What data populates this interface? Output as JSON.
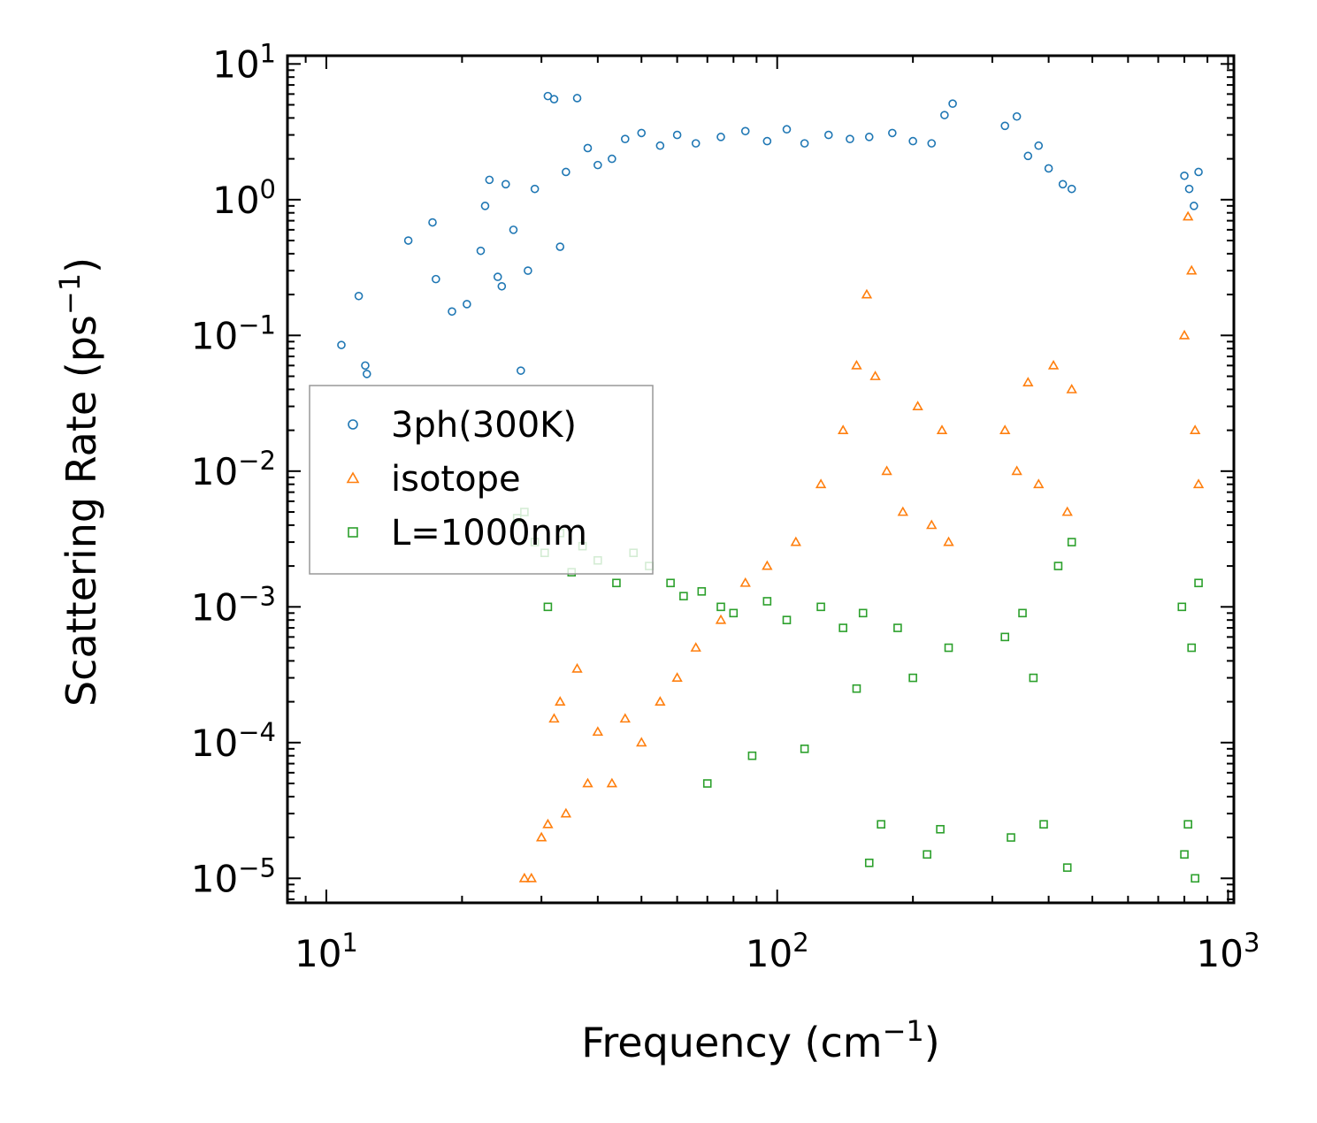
{
  "chart_data": {
    "type": "scatter",
    "xscale": "log",
    "yscale": "log",
    "xlim": [
      8.2,
      1030
    ],
    "ylim": [
      6.6e-06,
      11.5
    ],
    "xlabel": {
      "main": "Frequency (cm",
      "sup": "−1",
      "tail": ")"
    },
    "ylabel": {
      "main": "Scattering Rate (ps",
      "sup": "−1",
      "tail": ")"
    },
    "x_ticks": [
      {
        "value": 10,
        "base": "10",
        "exp": "1"
      },
      {
        "value": 100,
        "base": "10",
        "exp": "2"
      },
      {
        "value": 1000,
        "base": "10",
        "exp": "3"
      }
    ],
    "y_ticks": [
      {
        "value": 10,
        "base": "10",
        "exp": "1"
      },
      {
        "value": 1,
        "base": "10",
        "exp": "0"
      },
      {
        "value": 0.1,
        "base": "10",
        "exp": "−1"
      },
      {
        "value": 0.01,
        "base": "10",
        "exp": "−2"
      },
      {
        "value": 0.001,
        "base": "10",
        "exp": "−3"
      },
      {
        "value": 0.0001,
        "base": "10",
        "exp": "−4"
      },
      {
        "value": 1e-05,
        "base": "10",
        "exp": "−5"
      }
    ],
    "legend": {
      "location": "center-left"
    },
    "series": [
      {
        "name": "3ph(300K)",
        "marker": "circle",
        "color": "#1f77b4",
        "x": [
          10.8,
          11.8,
          12.2,
          12.3,
          15.2,
          17.2,
          17.5,
          19,
          20.5,
          22,
          22.5,
          23,
          24,
          24.5,
          25,
          26,
          27,
          28,
          29,
          31,
          32,
          33,
          34,
          36,
          38,
          40,
          43,
          46,
          50,
          55,
          60,
          66,
          75,
          85,
          95,
          105,
          115,
          130,
          145,
          160,
          180,
          200,
          220,
          235,
          245,
          320,
          340,
          360,
          380,
          400,
          430,
          450,
          800,
          820,
          840,
          860
        ],
        "y": [
          0.085,
          0.195,
          0.06,
          0.052,
          0.5,
          0.68,
          0.26,
          0.15,
          0.17,
          0.42,
          0.9,
          1.4,
          0.27,
          0.23,
          1.3,
          0.6,
          0.055,
          0.3,
          1.2,
          5.8,
          5.5,
          0.45,
          1.6,
          5.6,
          2.4,
          1.8,
          2.0,
          2.8,
          3.1,
          2.5,
          3.0,
          2.6,
          2.9,
          3.2,
          2.7,
          3.3,
          2.6,
          3.0,
          2.8,
          2.9,
          3.1,
          2.7,
          2.6,
          4.2,
          5.1,
          3.5,
          4.1,
          2.1,
          2.5,
          1.7,
          1.3,
          1.2,
          1.5,
          1.2,
          0.9,
          1.6
        ]
      },
      {
        "name": "isotope",
        "marker": "triangle",
        "color": "#ff7f0e",
        "x": [
          27.5,
          28.5,
          30,
          31,
          32,
          33,
          34,
          36,
          38,
          40,
          43,
          46,
          50,
          55,
          60,
          66,
          75,
          85,
          95,
          110,
          125,
          140,
          150,
          158,
          165,
          175,
          190,
          205,
          220,
          232,
          240,
          320,
          340,
          360,
          380,
          410,
          440,
          450,
          800,
          815,
          830,
          845,
          860
        ],
        "y": [
          1e-05,
          1e-05,
          2e-05,
          2.5e-05,
          0.00015,
          0.0002,
          3e-05,
          0.00035,
          5e-05,
          0.00012,
          5e-05,
          0.00015,
          0.0001,
          0.0002,
          0.0003,
          0.0005,
          0.0008,
          0.0015,
          0.002,
          0.003,
          0.008,
          0.02,
          0.06,
          0.2,
          0.05,
          0.01,
          0.005,
          0.03,
          0.004,
          0.02,
          0.003,
          0.02,
          0.01,
          0.045,
          0.008,
          0.06,
          0.005,
          0.04,
          0.1,
          0.75,
          0.3,
          0.02,
          0.008
        ]
      },
      {
        "name": "L=1000nm",
        "marker": "square",
        "color": "#2ca02c",
        "x": [
          26.5,
          27.5,
          29,
          30.5,
          31,
          33,
          35,
          37,
          40,
          44,
          48,
          52,
          58,
          62,
          68,
          70,
          75,
          80,
          88,
          95,
          105,
          115,
          125,
          140,
          150,
          155,
          160,
          170,
          185,
          200,
          215,
          230,
          240,
          320,
          330,
          350,
          370,
          390,
          420,
          440,
          450,
          790,
          800,
          815,
          830,
          845,
          860
        ],
        "y": [
          0.0045,
          0.005,
          0.003,
          0.0025,
          0.001,
          0.0035,
          0.0018,
          0.0028,
          0.0022,
          0.0015,
          0.0025,
          0.002,
          0.0015,
          0.0012,
          0.0013,
          5e-05,
          0.001,
          0.0009,
          8e-05,
          0.0011,
          0.0008,
          9e-05,
          0.001,
          0.0007,
          0.00025,
          0.0009,
          1.3e-05,
          2.5e-05,
          0.0007,
          0.0003,
          1.5e-05,
          2.3e-05,
          0.0005,
          0.0006,
          2e-05,
          0.0009,
          0.0003,
          2.5e-05,
          0.002,
          1.2e-05,
          0.003,
          0.001,
          1.5e-05,
          2.5e-05,
          0.0005,
          1e-05,
          0.0015
        ]
      }
    ]
  }
}
